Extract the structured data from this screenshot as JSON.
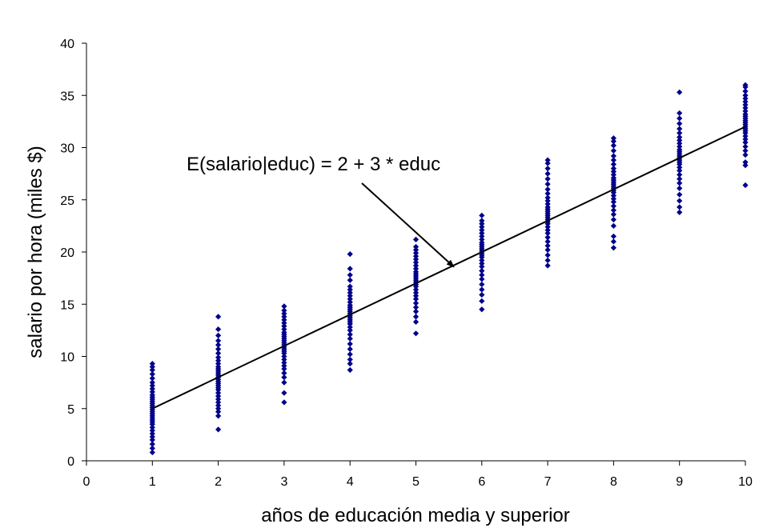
{
  "chart_data": {
    "type": "scatter",
    "title": "",
    "xlabel": "años de educación media y superior",
    "ylabel": "salario por hora (miles $)",
    "xlim": [
      0,
      10
    ],
    "ylim": [
      0,
      40
    ],
    "x_ticks": [
      "0",
      "1",
      "2",
      "3",
      "4",
      "5",
      "6",
      "7",
      "8",
      "9",
      "10"
    ],
    "y_ticks": [
      "0",
      "5",
      "10",
      "15",
      "20",
      "25",
      "30",
      "35",
      "40"
    ],
    "grid": false,
    "legend": "none",
    "marker_color": "#00008B",
    "line_color": "#000000",
    "regression_line": {
      "intercept": 2,
      "slope": 3,
      "x_range": [
        1,
        10
      ]
    },
    "annotation": {
      "text": "E(salario|educ) = 2 + 3 * educ",
      "points_to": {
        "x": 5.6,
        "y": 18.8
      }
    },
    "series": [
      {
        "groups": [
          {
            "x": 1,
            "ys": [
              0.8,
              1.2,
              1.6,
              2.0,
              2.3,
              2.6,
              2.9,
              3.2,
              3.5,
              3.7,
              3.9,
              4.1,
              4.3,
              4.5,
              4.7,
              4.9,
              5.1,
              5.3,
              5.5,
              5.7,
              5.9,
              6.1,
              6.3,
              6.6,
              6.9,
              7.2,
              7.5,
              7.9,
              8.3,
              8.7,
              9.0,
              9.3
            ]
          },
          {
            "x": 2,
            "ys": [
              3.0,
              4.3,
              4.7,
              5.0,
              5.3,
              5.6,
              5.9,
              6.2,
              6.5,
              6.8,
              7.0,
              7.2,
              7.4,
              7.6,
              7.8,
              8.0,
              8.2,
              8.4,
              8.6,
              8.8,
              9.0,
              9.3,
              9.6,
              9.9,
              10.3,
              10.7,
              11.1,
              11.5,
              12.0,
              12.6,
              13.8
            ]
          },
          {
            "x": 3,
            "ys": [
              5.6,
              6.5,
              7.5,
              8.0,
              8.4,
              8.8,
              9.1,
              9.4,
              9.7,
              10.0,
              10.3,
              10.5,
              10.7,
              10.9,
              11.1,
              11.3,
              11.5,
              11.7,
              11.9,
              12.1,
              12.3,
              12.6,
              12.9,
              13.2,
              13.5,
              13.8,
              14.1,
              14.4,
              14.8
            ]
          },
          {
            "x": 4,
            "ys": [
              8.7,
              9.3,
              9.7,
              10.2,
              10.7,
              11.2,
              11.7,
              12.1,
              12.5,
              12.8,
              13.1,
              13.3,
              13.5,
              13.7,
              13.9,
              14.1,
              14.3,
              14.5,
              14.7,
              14.9,
              15.2,
              15.5,
              15.8,
              16.1,
              16.4,
              16.7,
              17.3,
              17.8,
              18.4,
              19.8
            ]
          },
          {
            "x": 5,
            "ys": [
              12.2,
              13.3,
              13.8,
              14.3,
              14.7,
              15.1,
              15.5,
              15.8,
              16.1,
              16.4,
              16.7,
              16.9,
              17.1,
              17.3,
              17.5,
              17.7,
              17.9,
              18.1,
              18.4,
              18.7,
              19.0,
              19.3,
              19.6,
              19.9,
              20.2,
              20.5,
              21.2
            ]
          },
          {
            "x": 6,
            "ys": [
              14.5,
              15.3,
              15.9,
              16.4,
              16.9,
              17.4,
              17.8,
              18.2,
              18.6,
              18.9,
              19.2,
              19.5,
              19.7,
              19.9,
              20.1,
              20.3,
              20.5,
              20.7,
              20.9,
              21.2,
              21.5,
              21.8,
              22.1,
              22.4,
              22.7,
              23.0,
              23.5
            ]
          },
          {
            "x": 7,
            "ys": [
              18.7,
              19.2,
              19.7,
              20.2,
              20.6,
              21.0,
              21.4,
              21.8,
              22.1,
              22.4,
              22.7,
              22.9,
              23.1,
              23.3,
              23.5,
              23.7,
              23.9,
              24.1,
              24.3,
              24.6,
              24.9,
              25.2,
              25.6,
              26.0,
              26.5,
              27.0,
              27.5,
              28.0,
              28.5,
              28.8
            ]
          },
          {
            "x": 8,
            "ys": [
              20.4,
              21.0,
              21.5,
              22.5,
              23.1,
              23.6,
              24.0,
              24.4,
              24.8,
              25.1,
              25.4,
              25.7,
              25.9,
              26.1,
              26.3,
              26.5,
              26.7,
              26.9,
              27.1,
              27.4,
              27.7,
              28.0,
              28.4,
              28.8,
              29.2,
              29.7,
              30.2,
              30.6,
              30.9
            ]
          },
          {
            "x": 9,
            "ys": [
              23.8,
              24.3,
              24.9,
              25.5,
              26.1,
              26.6,
              27.0,
              27.4,
              27.8,
              28.1,
              28.4,
              28.6,
              28.8,
              29.0,
              29.2,
              29.4,
              29.6,
              29.8,
              30.1,
              30.4,
              30.7,
              31.0,
              31.4,
              31.8,
              32.3,
              32.8,
              33.3,
              35.3
            ]
          },
          {
            "x": 10,
            "ys": [
              26.4,
              28.3,
              28.6,
              29.3,
              29.7,
              30.1,
              30.5,
              30.8,
              31.1,
              31.4,
              31.6,
              31.8,
              32.0,
              32.2,
              32.4,
              32.6,
              32.8,
              33.0,
              33.2,
              33.5,
              33.8,
              34.1,
              34.4,
              34.7,
              35.0,
              35.4,
              35.8,
              36.0
            ]
          }
        ]
      }
    ]
  }
}
